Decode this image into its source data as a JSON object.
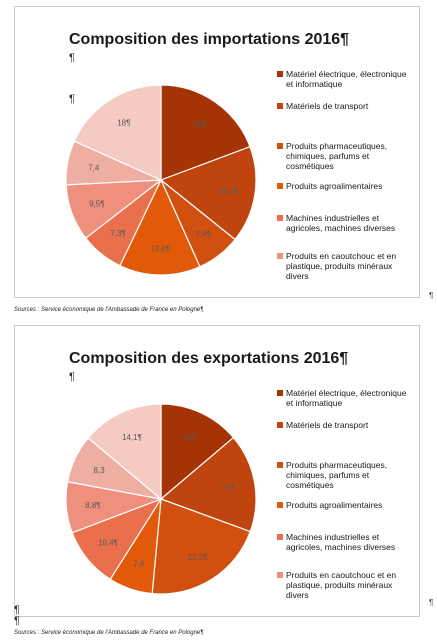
{
  "chart_data": [
    {
      "type": "pie",
      "title": "Composition des importations 2016",
      "categories": [
        "Matériel électrique, électronique et informatique",
        "Matériels de transport",
        "Produits pharmaceutiques, chimiques, parfums et cosmétiques",
        "Produits agroalimentaires",
        "Machines industrielles et agricoles, machines diverses",
        "Produits en caoutchouc et en plastique, produits minéraux divers",
        "",
        ""
      ],
      "values": [
        19,
        16.2,
        7.4,
        13.6,
        7.3,
        9.5,
        7.4,
        18
      ],
      "data_labels": [
        "19¶",
        "16,2¶",
        "7,4¶",
        "13,6¶",
        "7,3¶",
        "9,5¶",
        "7,4",
        "18¶"
      ],
      "legend_position": "right"
    },
    {
      "type": "pie",
      "title": "Composition des exportations 2016",
      "categories": [
        "Matériel électrique, électronique et informatique",
        "Matériels de transport",
        "Produits pharmaceutiques, chimiques, parfums et cosmétiques",
        "Produits agroalimentaires",
        "Machines industrielles et agricoles, machines diverses",
        "Produits en caoutchouc et en plastique, produits minéraux divers",
        "",
        ""
      ],
      "values": [
        14,
        17,
        21.2,
        7.6,
        10.4,
        8.8,
        8.3,
        14.1
      ],
      "data_labels": [
        "14¶",
        "17¶",
        "21,2¶",
        "7,6",
        "10,4¶",
        "8,8¶",
        "8,3",
        "14,1¶"
      ],
      "legend_position": "right"
    }
  ],
  "colors": [
    "#a43306",
    "#c0440e",
    "#d14f0f",
    "#e3590a",
    "#ea6f4c",
    "#ee907d",
    "#eeafa2",
    "#f4cac2"
  ],
  "title_mark": "¶",
  "pilcrow": "¶",
  "source_text": "Sources : Service économique de l'Ambassade de France en Pologne¶",
  "legend_labels": [
    "Matériel électrique, électronique et informatique",
    "Matériels de transport",
    "Produits pharmaceutiques, chimiques, parfums et cosmétiques",
    "Produits agroalimentaires",
    "Machines industrielles et agricoles, machines diverses",
    "Produits en caoutchouc et en plastique, produits minéraux divers"
  ]
}
